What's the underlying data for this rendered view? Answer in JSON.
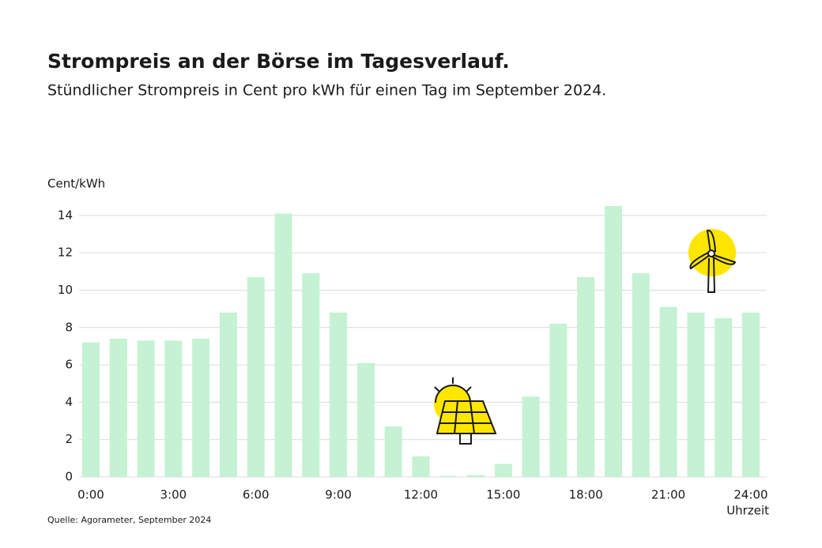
{
  "chart_data": {
    "type": "bar",
    "title": "Strompreis an der Börse im Tagesverlauf.",
    "subtitle": "Stündlicher Strompreis in Cent pro kWh für einen Tag im September 2024.",
    "y_label": "Cent/kWh",
    "x_label": "Uhrzeit",
    "source": "Quelle: Agorameter, September 2024",
    "categories": [
      "0:00",
      null,
      null,
      "3:00",
      null,
      null,
      "6:00",
      null,
      null,
      "9:00",
      null,
      null,
      "12:00",
      null,
      null,
      "15:00",
      null,
      null,
      "18:00",
      null,
      null,
      "21:00",
      null,
      null,
      "24:00"
    ],
    "values": [
      7.2,
      7.4,
      7.3,
      7.3,
      7.4,
      8.8,
      10.7,
      14.1,
      10.9,
      8.8,
      6.1,
      2.7,
      1.1,
      0.05,
      0.1,
      0.7,
      4.3,
      8.2,
      10.7,
      14.5,
      10.9,
      9.1,
      8.8,
      8.5,
      8.8
    ],
    "color": "#c4f2d3",
    "ylim": [
      0,
      14.5
    ],
    "yticks": [
      0,
      2,
      4,
      6,
      8,
      10,
      12,
      14
    ],
    "grid": true
  }
}
